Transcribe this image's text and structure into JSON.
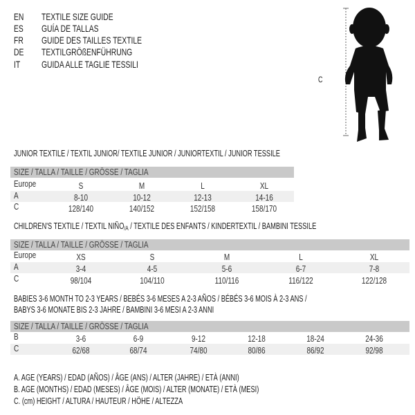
{
  "languages": [
    {
      "code": "EN",
      "label": "TEXTILE SIZE GUIDE"
    },
    {
      "code": "ES",
      "label": "GUÍA DE TALLAS"
    },
    {
      "code": "FR",
      "label": "GUIDE DES TAILLES TEXTILE"
    },
    {
      "code": "DE",
      "label": "TEXTILGRÖßENFÜHRUNG"
    },
    {
      "code": "IT",
      "label": "GUIDA ALLE TAGLIE TESSILI"
    }
  ],
  "figure": {
    "measure_label": "C",
    "icon": "child-silhouette-icon"
  },
  "size_header": "SIZE / TALLA / TAILLE / GRÖSSE / TAGLIA",
  "tables": [
    {
      "title": "JUNIOR TEXTILE / TEXTIL JUNIOR/ TEXTILE JUNIOR / JUNIORTEXTIL / JUNIOR TESSILE",
      "rows": [
        {
          "label": "Europe",
          "values": [
            "S",
            "M",
            "L",
            "XL"
          ]
        },
        {
          "label": "A",
          "values": [
            "8-10",
            "10-12",
            "12-13",
            "14-16"
          ]
        },
        {
          "label": "C",
          "values": [
            "128/140",
            "140/152",
            "152/158",
            "158/170"
          ]
        }
      ]
    },
    {
      "title": "CHILDREN'S TEXTILE / TEXTIL NIÑO",
      "title_sub": "/A",
      "title_rest": " / TEXTILE DES ENFANTS / KINDERTEXTIL / BAMBINI TESSILE",
      "rows": [
        {
          "label": "Europe",
          "values": [
            "XS",
            "S",
            "M",
            "L",
            "XL"
          ]
        },
        {
          "label": "A",
          "values": [
            "3-4",
            "4-5",
            "5-6",
            "6-7",
            "7-8"
          ]
        },
        {
          "label": "C",
          "values": [
            "98/104",
            "104/110",
            "110/116",
            "116/122",
            "122/128"
          ]
        }
      ]
    },
    {
      "title": "BABIES 3-6 MONTH TO 2-3 YEARS / BEBÉS 3-6 MESES A 2-3 AÑOS / BÉBÉS 3-6 MOIS À 2-3 ANS /",
      "title_line2": "BABYS 3-6 MONATE BIS 2-3 JAHRE / BAMBINI 3-6 MESI A 2-3 ANNI",
      "rows": [
        {
          "label": "B",
          "values": [
            "3-6",
            "6-9",
            "9-12",
            "12-18",
            "18-24",
            "24-36"
          ]
        },
        {
          "label": "C",
          "values": [
            "62/68",
            "68/74",
            "74/80",
            "80/86",
            "86/92",
            "92/98"
          ]
        }
      ]
    }
  ],
  "legend": [
    "A. AGE (YEARS) / EDAD (AÑOS) / ÂGE (ANS) / ALTER (JAHRE) / ETÀ (ANNI)",
    "B. AGE (MONTHS) / EDAD (MESES) / ÂGE (MOIS) / ALTER (MONATE) / ETÀ (MESI)",
    "C. (cm) HEIGHT / ALTURA / HAUTEUR / HÖHE / ALTEZZA"
  ],
  "colors": {
    "header_band": "#c9c9c9",
    "alt_band": "#efefef",
    "text": "#1a1a1a"
  }
}
